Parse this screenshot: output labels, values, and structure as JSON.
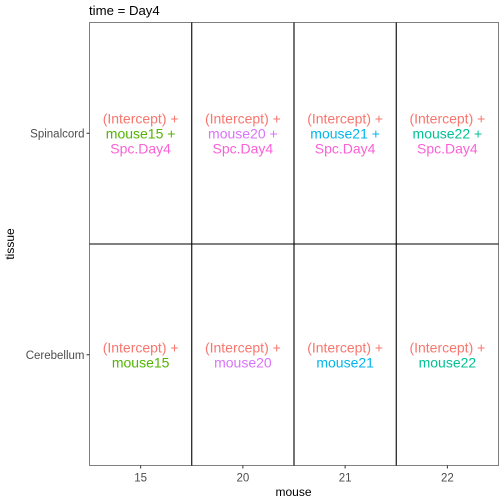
{
  "chart_data": {
    "type": "table",
    "title": "time = Day4",
    "xlabel": "mouse",
    "ylabel": "tissue",
    "x_categories": [
      "15",
      "20",
      "21",
      "22"
    ],
    "y_categories": [
      "Spinalcord",
      "Cerebellum"
    ],
    "colors": {
      "intercept": "#F8766D",
      "mouse15": "#53B400",
      "mouse20": "#DB72FB",
      "mouse21": "#00B6EB",
      "mouse22": "#00C094",
      "spc_day4": "#FB61D7",
      "axis_text": "#4d4d4d",
      "grid_line": "#000000",
      "panel_border": "#7f7f7f"
    },
    "cells": [
      {
        "row": "Spinalcord",
        "col": "15",
        "lines": [
          {
            "text": "(Intercept) +",
            "color": "intercept"
          },
          {
            "text": "mouse15 +",
            "color": "mouse15"
          },
          {
            "text": "Spc.Day4",
            "color": "spc_day4"
          }
        ]
      },
      {
        "row": "Spinalcord",
        "col": "20",
        "lines": [
          {
            "text": "(Intercept) +",
            "color": "intercept"
          },
          {
            "text": "mouse20 +",
            "color": "mouse20"
          },
          {
            "text": "Spc.Day4",
            "color": "spc_day4"
          }
        ]
      },
      {
        "row": "Spinalcord",
        "col": "21",
        "lines": [
          {
            "text": "(Intercept) +",
            "color": "intercept"
          },
          {
            "text": "mouse21 +",
            "color": "mouse21"
          },
          {
            "text": "Spc.Day4",
            "color": "spc_day4"
          }
        ]
      },
      {
        "row": "Spinalcord",
        "col": "22",
        "lines": [
          {
            "text": "(Intercept) +",
            "color": "intercept"
          },
          {
            "text": "mouse22 +",
            "color": "mouse22"
          },
          {
            "text": "Spc.Day4",
            "color": "spc_day4"
          }
        ]
      },
      {
        "row": "Cerebellum",
        "col": "15",
        "lines": [
          {
            "text": "(Intercept) +",
            "color": "intercept"
          },
          {
            "text": "mouse15",
            "color": "mouse15"
          }
        ]
      },
      {
        "row": "Cerebellum",
        "col": "20",
        "lines": [
          {
            "text": "(Intercept) +",
            "color": "intercept"
          },
          {
            "text": "mouse20",
            "color": "mouse20"
          }
        ]
      },
      {
        "row": "Cerebellum",
        "col": "21",
        "lines": [
          {
            "text": "(Intercept) +",
            "color": "intercept"
          },
          {
            "text": "mouse21",
            "color": "mouse21"
          }
        ]
      },
      {
        "row": "Cerebellum",
        "col": "22",
        "lines": [
          {
            "text": "(Intercept) +",
            "color": "intercept"
          },
          {
            "text": "mouse22",
            "color": "mouse22"
          }
        ]
      }
    ]
  }
}
